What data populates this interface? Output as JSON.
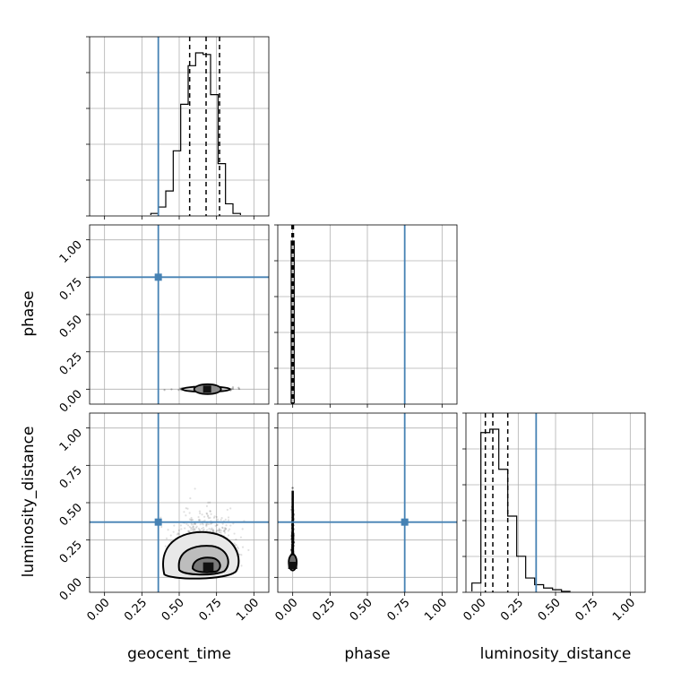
{
  "chart_data": {
    "type": "corner",
    "parameters": [
      "geocent_time",
      "phase",
      "luminosity_distance"
    ],
    "axis_range": [
      -0.1,
      1.1
    ],
    "ticks": [
      0.0,
      0.25,
      0.5,
      0.75,
      1.0
    ],
    "tick_labels": [
      "0.00",
      "0.25",
      "0.50",
      "0.75",
      "1.00"
    ],
    "truths": {
      "geocent_time": 0.36,
      "phase": 0.75,
      "luminosity_distance": 0.37
    },
    "truth_color": "#4682b4",
    "histograms": {
      "geocent_time": {
        "bin_edges": [
          0.31,
          0.36,
          0.41,
          0.46,
          0.51,
          0.56,
          0.61,
          0.66,
          0.71,
          0.76,
          0.81,
          0.86,
          0.91
        ],
        "counts": [
          1,
          5,
          15,
          40,
          69,
          93,
          101,
          100,
          75,
          32,
          7,
          1
        ],
        "quantiles": [
          0.57,
          0.68,
          0.77
        ]
      },
      "phase": {
        "bin_edges": [
          -0.01,
          0.0,
          0.01
        ],
        "counts": [
          100,
          100
        ],
        "quantiles": [
          -0.005,
          0.0,
          0.005
        ]
      },
      "luminosity_distance": {
        "bin_edges": [
          -0.06,
          0.0,
          0.06,
          0.12,
          0.18,
          0.24,
          0.3,
          0.36,
          0.42,
          0.48,
          0.54,
          0.6
        ],
        "counts": [
          5,
          95,
          97,
          73,
          45,
          21,
          8,
          4,
          2,
          1,
          0
        ],
        "quantiles": [
          0.03,
          0.08,
          0.18
        ]
      }
    },
    "contours": {
      "geocent_time_vs_phase": {
        "center": [
          0.68,
          0.0
        ]
      },
      "geocent_time_vs_luminosity_distance": {
        "center": [
          0.68,
          0.1
        ]
      },
      "phase_vs_luminosity_distance": {
        "center": [
          0.0,
          0.1
        ]
      }
    },
    "grid": true
  }
}
